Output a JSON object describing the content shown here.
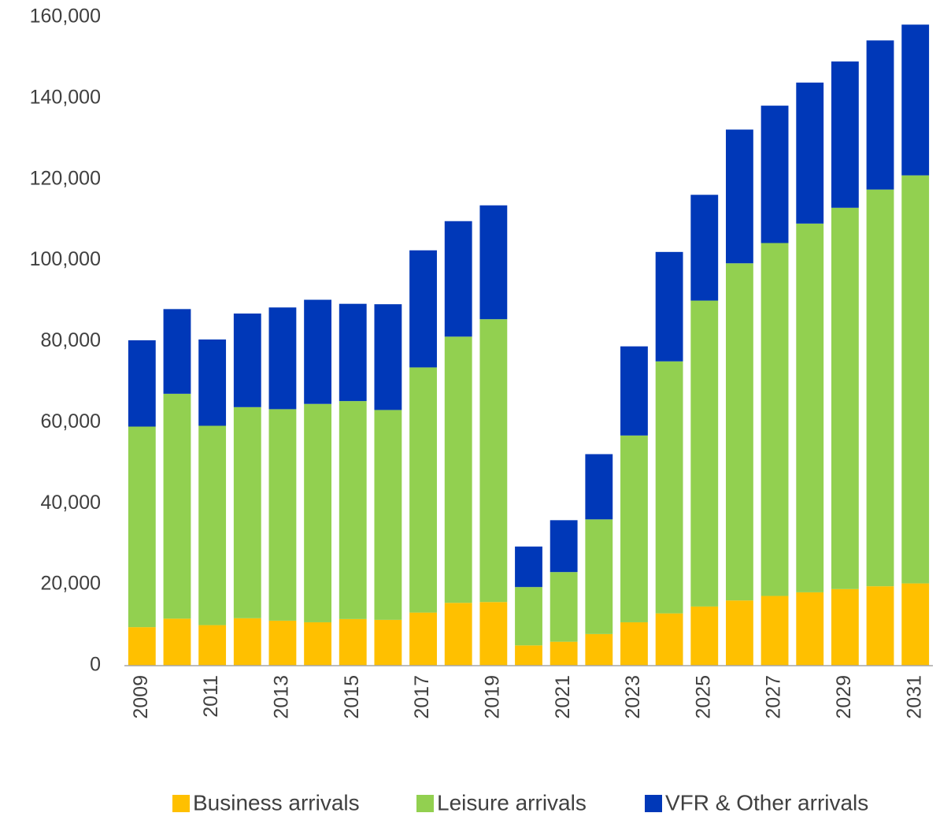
{
  "chart_data": {
    "type": "stacked_bar",
    "categories": [
      "2009",
      null,
      "2011",
      null,
      "2013",
      null,
      "2015",
      null,
      "2017",
      null,
      "2019",
      null,
      "2021",
      null,
      "2023",
      null,
      "2025",
      null,
      "2027",
      null,
      "2029",
      null,
      "2031"
    ],
    "series": [
      {
        "name": "Business arrivals",
        "color": "#ffc000",
        "values": [
          9500,
          11600,
          10000,
          11700,
          11100,
          10700,
          11500,
          11300,
          13100,
          15500,
          15700,
          5000,
          5900,
          7800,
          10700,
          12900,
          14600,
          16100,
          17200,
          18100,
          18900,
          19600,
          20300
        ]
      },
      {
        "name": "Leisure arrivals",
        "color": "#92d050",
        "values": [
          49500,
          55500,
          49200,
          52100,
          52200,
          53900,
          53800,
          51800,
          60500,
          65700,
          69800,
          14400,
          17200,
          28300,
          46100,
          62200,
          75500,
          83200,
          87100,
          91000,
          94100,
          97900,
          100700
        ]
      },
      {
        "name": "VFR & Other arrivals",
        "color": "#0038b8",
        "values": [
          21300,
          20900,
          21300,
          23100,
          25100,
          25700,
          24000,
          26100,
          28900,
          28500,
          28100,
          10000,
          12800,
          16100,
          22000,
          27000,
          26100,
          33000,
          33900,
          34800,
          36100,
          36800,
          37200
        ]
      }
    ],
    "ylim": [
      0,
      160000
    ],
    "yticks": [
      0,
      {
        "value": 20000,
        "label": "20,000"
      },
      {
        "value": 40000,
        "label": "40,000"
      },
      {
        "value": 60000,
        "label": "60,000"
      },
      {
        "value": 80000,
        "label": "80,000"
      },
      {
        "value": 100000,
        "label": "100,000"
      },
      {
        "value": 120000,
        "label": "120,000"
      },
      {
        "value": 140000,
        "label": "140,000"
      },
      {
        "value": 160000,
        "label": "160,000"
      }
    ],
    "legend": "bottom"
  }
}
